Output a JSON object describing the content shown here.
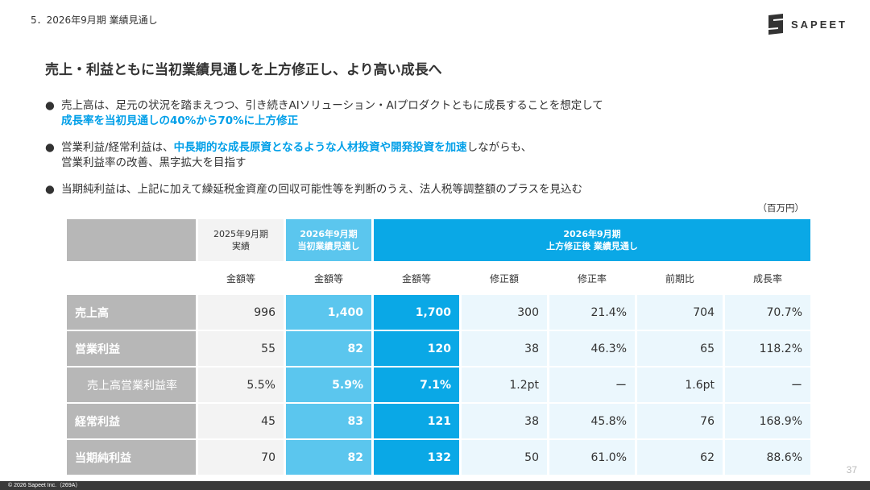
{
  "header": {
    "section": "5．2026年9月期 業績見通し",
    "logo_text": "SAPEET"
  },
  "title": "売上・利益ともに当初業績見通しを上方修正し、より高い成長へ",
  "bullets": [
    {
      "line1_plain": "売上高は、足元の状況を踏まえつつ、引き続きAIソリューション・AIプロダクトともに成長することを想定して",
      "line2_highlight": "成長率を当初見通しの40%から70%に上方修正"
    },
    {
      "line1_plain": "営業利益/経常利益は、",
      "line1_highlight": "中長期的な成長原資となるような人材投資や開発投資を加速",
      "line1_tail": "しながらも、",
      "line2_plain": "営業利益率の改善、黒字拡大を目指す"
    },
    {
      "line1_plain": "当期純利益は、上記に加えて繰延税金資産の回収可能性等を判断のうえ、法人税等調整額のプラスを見込む"
    }
  ],
  "unit": "（百万円）",
  "table": {
    "headers": {
      "col2025_line1": "2025年9月期",
      "col2025_line2": "実績",
      "colinit_line1": "2026年9月期",
      "colinit_line2": "当初業績見通し",
      "colrev_line1": "2026年9月期",
      "colrev_line2": "上方修正後 業績見通し"
    },
    "subheaders": [
      "金額等",
      "金額等",
      "金額等",
      "修正額",
      "修正率",
      "前期比",
      "成長率"
    ],
    "rows": [
      {
        "label": "売上高",
        "indent": false,
        "values": [
          "996",
          "1,400",
          "1,700",
          "300",
          "21.4%",
          "704",
          "70.7%"
        ]
      },
      {
        "label": "営業利益",
        "indent": false,
        "values": [
          "55",
          "82",
          "120",
          "38",
          "46.3%",
          "65",
          "118.2%"
        ]
      },
      {
        "label": "売上高営業利益率",
        "indent": true,
        "values": [
          "5.5%",
          "5.9%",
          "7.1%",
          "1.2pt",
          "ー",
          "1.6pt",
          "ー"
        ]
      },
      {
        "label": "経常利益",
        "indent": false,
        "values": [
          "45",
          "83",
          "121",
          "38",
          "45.8%",
          "76",
          "168.9%"
        ]
      },
      {
        "label": "当期純利益",
        "indent": false,
        "values": [
          "70",
          "82",
          "132",
          "50",
          "61.0%",
          "62",
          "88.6%"
        ]
      }
    ]
  },
  "page_number": "37",
  "footer": "© 2026 Sapeet Inc.（269A）",
  "colors": {
    "accent": "#009fe8",
    "initial_col": "#5bc6ee",
    "revised_col": "#0aa8e6",
    "light_col": "#ebf7fd",
    "label_bg": "#b7b7b7"
  }
}
